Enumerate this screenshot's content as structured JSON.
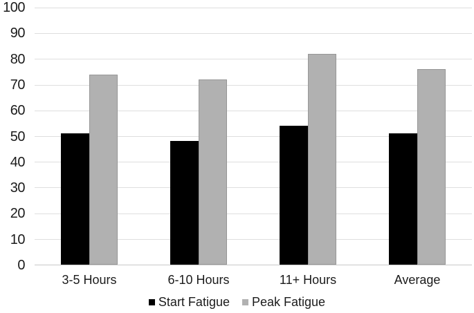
{
  "chart_data": {
    "type": "bar",
    "title": "",
    "categories": [
      "3-5 Hours",
      "6-10 Hours",
      "11+ Hours",
      "Average"
    ],
    "series": [
      {
        "name": "Start Fatigue",
        "color": "#000000",
        "border_color": "#000000",
        "values": [
          51,
          48,
          54,
          51
        ]
      },
      {
        "name": "Peak Fatigue",
        "color": "#b1b1b1",
        "border_color": "#969696",
        "values": [
          74,
          72,
          82,
          76
        ]
      }
    ],
    "xlabel": "",
    "ylabel": "",
    "ylim": [
      0,
      100
    ],
    "ytick_step": 10,
    "ytick_labels": [
      "0",
      "10",
      "20",
      "30",
      "40",
      "50",
      "60",
      "70",
      "80",
      "90",
      "100"
    ],
    "grid": true,
    "gridline_color": "#dedede",
    "axis_line_color": "#c8c8c8",
    "text_color": "#1b1b1b",
    "background_color": "#ffffff",
    "legend_position": "bottom"
  }
}
